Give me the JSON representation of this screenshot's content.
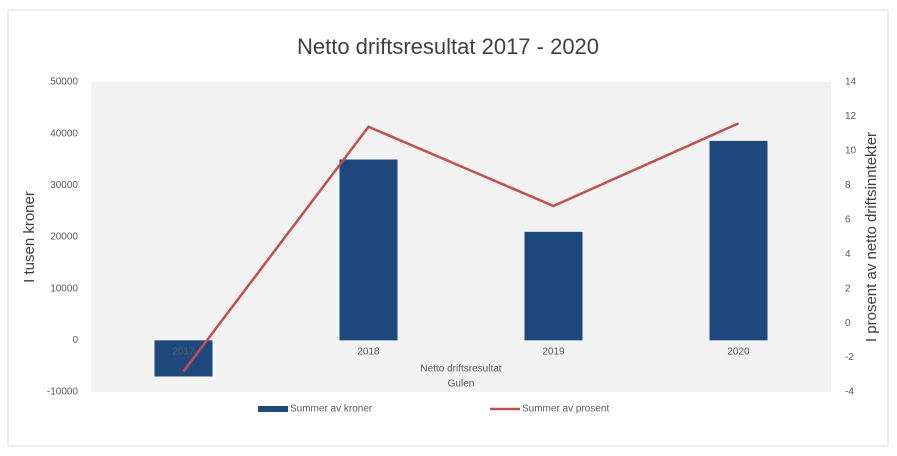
{
  "chart_data": {
    "type": "bar",
    "title": "Netto driftsresultat 2017 - 2020",
    "y_axis_title": "I tusen kroner",
    "y2_axis_title": "I prosent av netto driftsinntekter",
    "annotations": [
      "Netto driftsresultat",
      "Gulen"
    ],
    "categories": [
      "2017",
      "2018",
      "2019",
      "2020"
    ],
    "series": [
      {
        "name": "Summer av kroner",
        "type": "bar",
        "color": "#1f497d",
        "values": [
          -7000,
          35000,
          21000,
          38600
        ]
      },
      {
        "name": "Summer av prosent",
        "type": "line",
        "axis": "y2",
        "color": "#c0504d",
        "values": [
          -2.8,
          11.4,
          6.8,
          11.6
        ]
      }
    ],
    "ylim": [
      -10000,
      50000
    ],
    "yticks": [
      -10000,
      0,
      10000,
      20000,
      30000,
      40000,
      50000
    ],
    "y2lim": [
      -4,
      14
    ],
    "y2ticks": [
      -4,
      -2,
      0,
      2,
      4,
      6,
      8,
      10,
      12,
      14
    ],
    "legend": "bottom"
  }
}
